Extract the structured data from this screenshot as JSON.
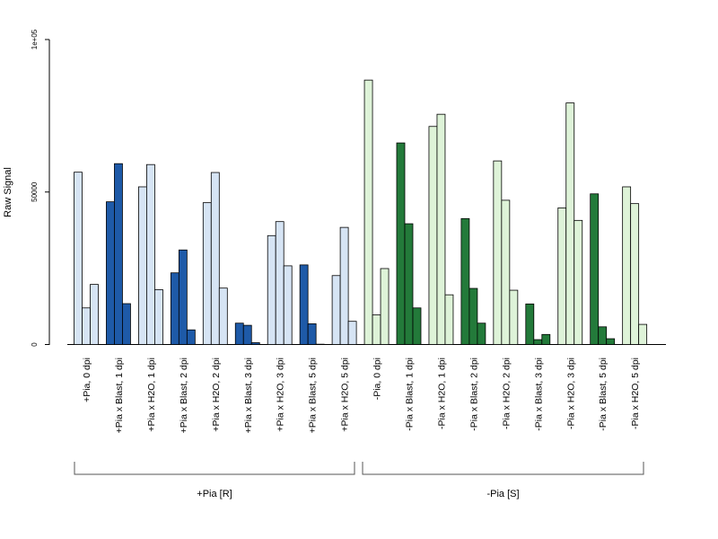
{
  "chart_data": {
    "type": "bar",
    "ylabel": "Raw Signal",
    "ylim": [
      0,
      100000
    ],
    "yticks": [
      {
        "value": 0,
        "label": "0"
      },
      {
        "value": 50000,
        "label": "50000"
      },
      {
        "value": 100000,
        "label": "1e+05"
      }
    ],
    "groups": [
      {
        "label": "+Pia, 0 dpi",
        "kind": "H2O",
        "side": "plus",
        "values": [
          56500,
          12000,
          19700
        ]
      },
      {
        "label": "+Pia x Blast, 1 dpi",
        "kind": "Blast",
        "side": "plus",
        "values": [
          46800,
          59300,
          13400
        ]
      },
      {
        "label": "+Pia x H2O, 1 dpi",
        "kind": "H2O",
        "side": "plus",
        "values": [
          51700,
          59000,
          18000
        ]
      },
      {
        "label": "+Pia x Blast, 2 dpi",
        "kind": "Blast",
        "side": "plus",
        "values": [
          23500,
          31000,
          4800
        ]
      },
      {
        "label": "+Pia x H2O, 2 dpi",
        "kind": "H2O",
        "side": "plus",
        "values": [
          46500,
          56400,
          18500
        ]
      },
      {
        "label": "+Pia x Blast, 3 dpi",
        "kind": "Blast",
        "side": "plus",
        "values": [
          7000,
          6300,
          600
        ]
      },
      {
        "label": "+Pia x H2O, 3 dpi",
        "kind": "H2O",
        "side": "plus",
        "values": [
          35700,
          40300,
          25800
        ]
      },
      {
        "label": "+Pia x Blast, 5 dpi",
        "kind": "Blast",
        "side": "plus",
        "values": [
          26100,
          6800,
          100
        ]
      },
      {
        "label": "+Pia x H2O, 5 dpi",
        "kind": "H2O",
        "side": "plus",
        "values": [
          22600,
          38400,
          7600
        ]
      },
      {
        "label": "-Pia, 0 dpi",
        "kind": "H2O",
        "side": "minus",
        "values": [
          86700,
          9700,
          24900
        ]
      },
      {
        "label": "-Pia x Blast, 1 dpi",
        "kind": "Blast",
        "side": "minus",
        "values": [
          66100,
          39600,
          12000
        ]
      },
      {
        "label": "-Pia x H2O, 1 dpi",
        "kind": "H2O",
        "side": "minus",
        "values": [
          71500,
          75500,
          16300
        ]
      },
      {
        "label": "-Pia x Blast, 2 dpi",
        "kind": "Blast",
        "side": "minus",
        "values": [
          41300,
          18400,
          7000
        ]
      },
      {
        "label": "-Pia x H2O, 2 dpi",
        "kind": "H2O",
        "side": "minus",
        "values": [
          60200,
          47300,
          17800
        ]
      },
      {
        "label": "-Pia x Blast, 3 dpi",
        "kind": "Blast",
        "side": "minus",
        "values": [
          13300,
          1600,
          3300
        ]
      },
      {
        "label": "-Pia x H2O, 3 dpi",
        "kind": "H2O",
        "side": "minus",
        "values": [
          44800,
          79200,
          40700
        ]
      },
      {
        "label": "-Pia x Blast, 5 dpi",
        "kind": "Blast",
        "side": "minus",
        "values": [
          49400,
          5800,
          1900
        ]
      },
      {
        "label": "-Pia x H2O, 5 dpi",
        "kind": "H2O",
        "side": "minus",
        "values": [
          51700,
          46200,
          6600
        ]
      }
    ],
    "colors": {
      "plus": {
        "H2O": "#d6e4f4",
        "Blast": "#1e5aa8"
      },
      "minus": {
        "H2O": "#def3d8",
        "Blast": "#237a3a"
      }
    },
    "brackets": [
      {
        "label": "+Pia [R]"
      },
      {
        "label": "-Pia [S]"
      }
    ],
    "legend": "none",
    "grid": false
  }
}
